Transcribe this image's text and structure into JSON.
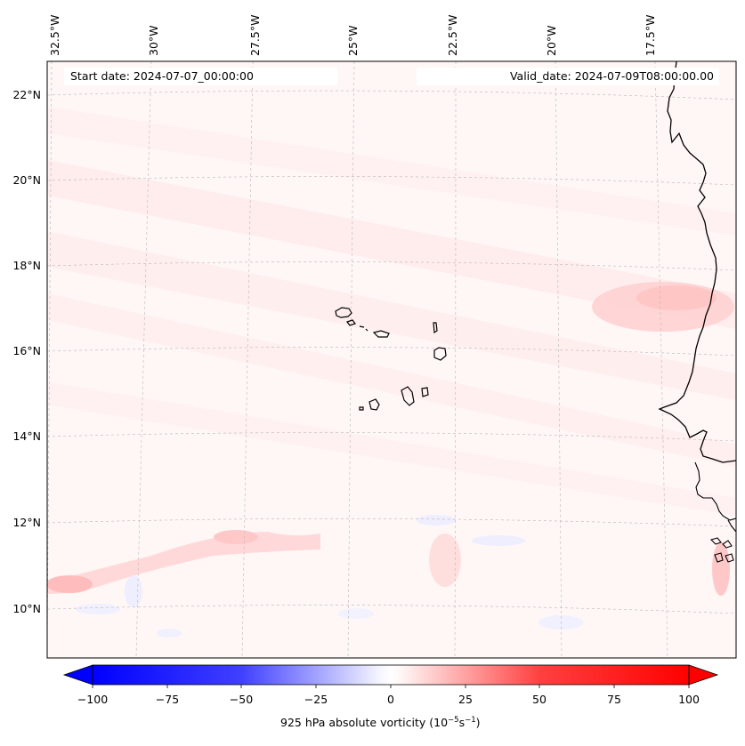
{
  "header": {
    "start_date": "Start date: 2024-07-07_00:00:00",
    "valid_date": "Valid_date: 2024-07-09T08:00:00.00"
  },
  "map": {
    "lon_labels": [
      "32.5°W",
      "30°W",
      "27.5°W",
      "25°W",
      "22.5°W",
      "20°W",
      "17.5°W"
    ],
    "lat_labels": [
      "22°N",
      "20°N",
      "18°N",
      "16°N",
      "14°N",
      "12°N",
      "10°N"
    ],
    "coastline_color": "#000000",
    "gridline_style": "dashed-grey"
  },
  "colorbar": {
    "ticks": [
      "−100",
      "−75",
      "−50",
      "−25",
      "0",
      "25",
      "50",
      "75",
      "100"
    ],
    "min_color": "#0000ff",
    "mid_color": "#ffffff",
    "max_color": "#ff0000",
    "label_prefix": "925 hPa absolute vorticity (10",
    "label_exp1": "−5",
    "label_mid": "s",
    "label_exp2": "−1",
    "label_suffix": ")"
  }
}
